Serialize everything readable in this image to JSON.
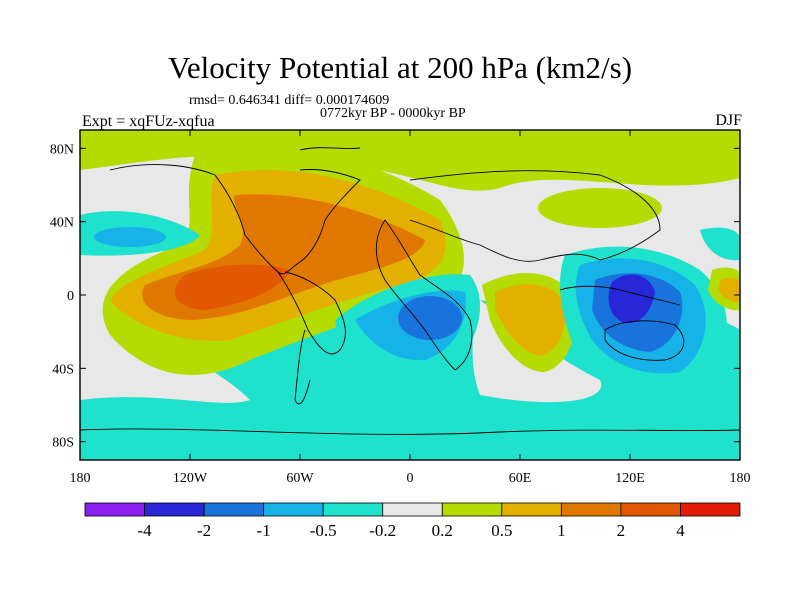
{
  "title": "Velocity Potential at 200 hPa (km2/s)",
  "stats": "rmsd= 0.646341 diff= 0.000174609",
  "period": "0772kyr BP - 0000kyr BP",
  "expt": "Expt = xqFUz-xqfua",
  "season": "DJF",
  "map": {
    "projection": "cylindrical equidistant",
    "lon_range": [
      -180,
      180
    ],
    "lat_range": [
      -90,
      90
    ],
    "x_ticks": [
      {
        "lon": -180,
        "label": "180"
      },
      {
        "lon": -120,
        "label": "120W"
      },
      {
        "lon": -60,
        "label": "60W"
      },
      {
        "lon": 0,
        "label": "0"
      },
      {
        "lon": 60,
        "label": "60E"
      },
      {
        "lon": 120,
        "label": "120E"
      },
      {
        "lon": 180,
        "label": "180"
      }
    ],
    "y_ticks": [
      {
        "lat": 80,
        "label": "80N"
      },
      {
        "lat": 40,
        "label": "40N"
      },
      {
        "lat": 0,
        "label": "0"
      },
      {
        "lat": -40,
        "label": "40S"
      },
      {
        "lat": -80,
        "label": "80S"
      }
    ]
  },
  "colorbar": {
    "colors": [
      "#8a1ff0",
      "#2727d8",
      "#1874dc",
      "#15b3e8",
      "#1ee2cc",
      "#e8e8e8",
      "#b4dc00",
      "#e4b000",
      "#e07800",
      "#e25800",
      "#e31a05"
    ],
    "labels": [
      "-4",
      "-2",
      "-1",
      "-0.5",
      "-0.2",
      "0.2",
      "0.5",
      "1",
      "2",
      "4"
    ]
  }
}
